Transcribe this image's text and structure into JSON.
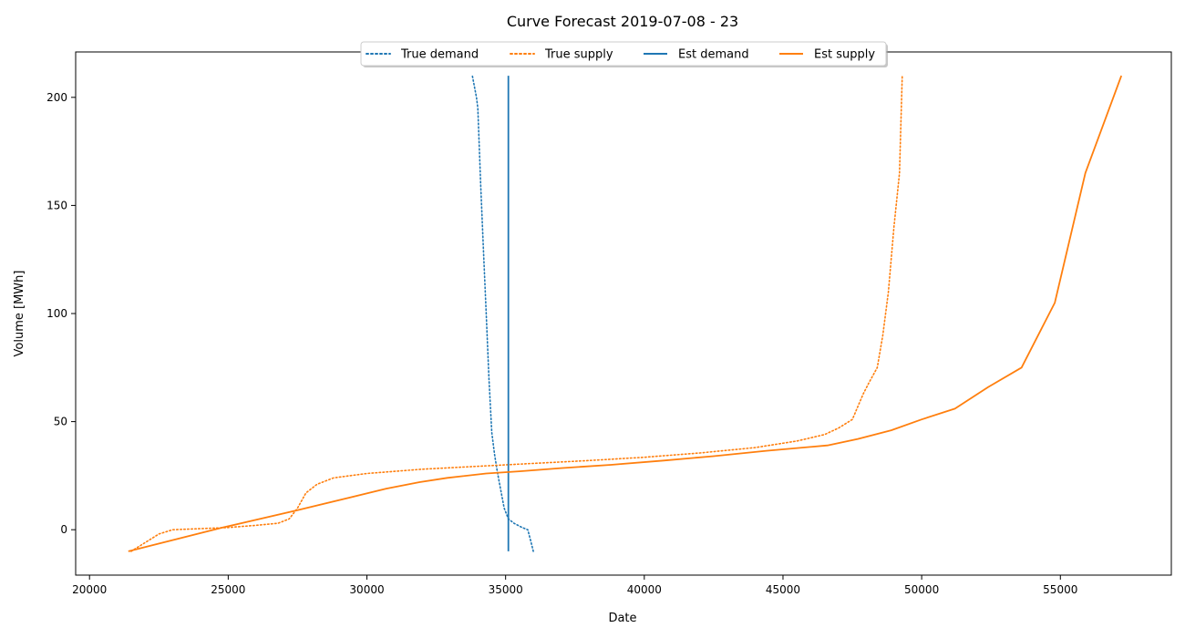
{
  "chart_data": {
    "type": "line",
    "title": "Curve Forecast 2019-07-08 - 23",
    "xlabel": "Date",
    "ylabel": "Volume [MWh]",
    "xlim": [
      19500,
      59000
    ],
    "ylim": [
      -21,
      221
    ],
    "xticks": [
      20000,
      25000,
      30000,
      35000,
      40000,
      45000,
      50000,
      55000
    ],
    "yticks": [
      0,
      50,
      100,
      150,
      200
    ],
    "grid": false,
    "legend": {
      "placement": "top-center"
    },
    "series": [
      {
        "name": "True demand",
        "color": "#1f77b4",
        "style": "dotted",
        "points": [
          [
            36000,
            -10
          ],
          [
            35900,
            -5
          ],
          [
            35800,
            0
          ],
          [
            35600,
            1
          ],
          [
            35300,
            3
          ],
          [
            35100,
            5
          ],
          [
            34950,
            10
          ],
          [
            34800,
            20
          ],
          [
            34700,
            27
          ],
          [
            34600,
            35
          ],
          [
            34500,
            45
          ],
          [
            34400,
            70
          ],
          [
            34300,
            100
          ],
          [
            34200,
            130
          ],
          [
            34100,
            160
          ],
          [
            34000,
            195
          ],
          [
            33950,
            200
          ],
          [
            33800,
            210
          ]
        ]
      },
      {
        "name": "True supply",
        "color": "#ff7f0e",
        "style": "dotted",
        "points": [
          [
            21500,
            -10
          ],
          [
            22000,
            -6
          ],
          [
            22500,
            -2
          ],
          [
            23000,
            0
          ],
          [
            24000,
            0.5
          ],
          [
            25000,
            1
          ],
          [
            26000,
            2
          ],
          [
            26800,
            3
          ],
          [
            27200,
            5
          ],
          [
            27500,
            10
          ],
          [
            27800,
            17
          ],
          [
            28200,
            21
          ],
          [
            28800,
            24
          ],
          [
            30000,
            26
          ],
          [
            32000,
            28
          ],
          [
            35000,
            30
          ],
          [
            38000,
            32
          ],
          [
            40000,
            33.5
          ],
          [
            42000,
            35.5
          ],
          [
            44000,
            38
          ],
          [
            45500,
            41
          ],
          [
            46500,
            44
          ],
          [
            47000,
            47
          ],
          [
            47500,
            51
          ],
          [
            47700,
            57
          ],
          [
            47900,
            63
          ],
          [
            48100,
            68
          ],
          [
            48400,
            75
          ],
          [
            48600,
            90
          ],
          [
            48800,
            110
          ],
          [
            49000,
            140
          ],
          [
            49200,
            165
          ],
          [
            49300,
            210
          ]
        ]
      },
      {
        "name": "Est demand",
        "color": "#1f77b4",
        "style": "solid",
        "points": [
          [
            35100,
            -10
          ],
          [
            35100,
            210
          ]
        ]
      },
      {
        "name": "Est supply",
        "color": "#ff7f0e",
        "style": "solid",
        "points": [
          [
            21400,
            -10
          ],
          [
            24800,
            1
          ],
          [
            27500,
            9
          ],
          [
            30700,
            19
          ],
          [
            31900,
            22
          ],
          [
            32900,
            24
          ],
          [
            34300,
            26
          ],
          [
            35500,
            27
          ],
          [
            37000,
            28.5
          ],
          [
            38800,
            30
          ],
          [
            40700,
            32
          ],
          [
            42500,
            34
          ],
          [
            44400,
            36.5
          ],
          [
            46600,
            39
          ],
          [
            47700,
            42
          ],
          [
            48900,
            46
          ],
          [
            50000,
            51
          ],
          [
            51200,
            56
          ],
          [
            52400,
            66
          ],
          [
            53600,
            75
          ],
          [
            54800,
            105
          ],
          [
            55900,
            165
          ],
          [
            57200,
            210
          ]
        ]
      }
    ]
  }
}
